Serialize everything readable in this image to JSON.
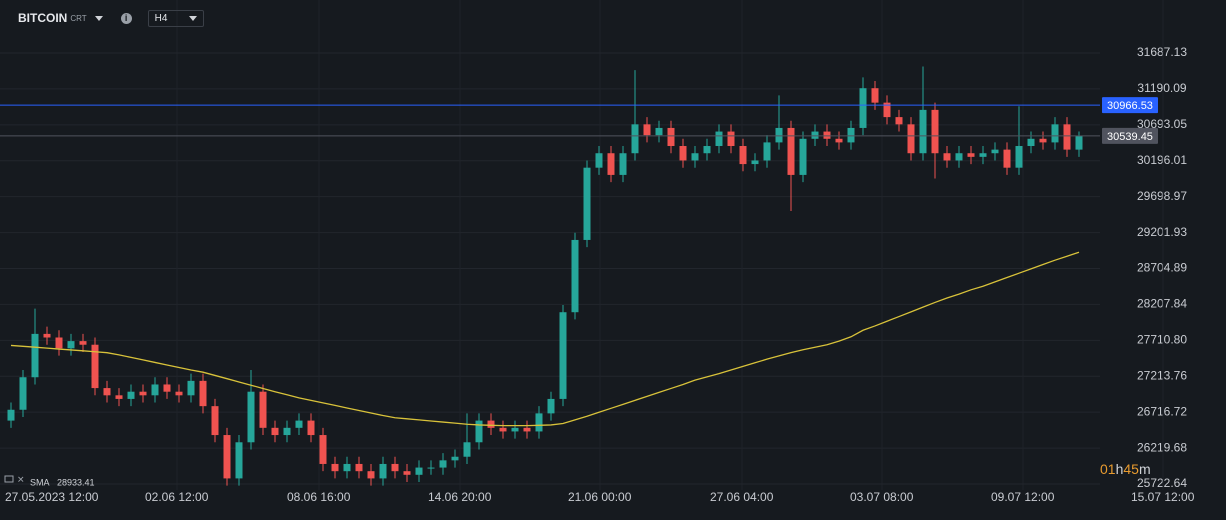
{
  "chart_data": {
    "type": "candlestick",
    "symbol": "BITCOIN",
    "symbol_suffix": "CRT",
    "timeframe": "H4",
    "up_color": "#26a69a",
    "down_color": "#ef5350",
    "grid": true,
    "ylim": [
      25639.61,
      32420.58
    ],
    "yticks": [
      31687.13,
      31190.09,
      30693.05,
      30196.01,
      29698.97,
      29201.93,
      28704.89,
      28207.84,
      {
        "value": 27710.8,
        "label": "27710.80"
      },
      27213.76,
      26716.72,
      26219.68,
      25722.64
    ],
    "x_labels": [
      "27.05.2023  12:00",
      "02.06  12:00",
      "08.06  16:00",
      "14.06  20:00",
      "21.06  00:00",
      "27.06  04:00",
      "03.07  08:00",
      "09.07  12:00",
      "15.07  12:00"
    ],
    "open": [
      26600,
      26750,
      27200,
      27800,
      27750,
      27600,
      27700,
      27650,
      27050,
      26950,
      26900,
      27000,
      26950,
      27100,
      27000,
      26950,
      27150,
      26800,
      26400,
      25800,
      26300,
      27000,
      26500,
      26400,
      26500,
      26600,
      26400,
      26000,
      25900,
      26000,
      25900,
      25800,
      26000,
      25900,
      25850,
      25950,
      25950,
      26050,
      26100,
      26300,
      26600,
      26500,
      26450,
      26500,
      26450,
      26700,
      26900,
      28100,
      29100,
      30100,
      30300,
      30000,
      30300,
      30700,
      30550,
      30650,
      30400,
      30200,
      30300,
      30400,
      30600,
      30400,
      30150,
      30200,
      30450,
      30650,
      30000,
      30500,
      30600,
      30500,
      30450,
      30650,
      31200,
      31000,
      30800,
      30700,
      30300,
      30900,
      30300,
      30200,
      30300,
      30250,
      30300,
      30350,
      30100,
      30400,
      30500,
      30450,
      30700,
      30350
    ],
    "high": [
      26850,
      27300,
      28150,
      27900,
      27850,
      27800,
      27800,
      27750,
      27150,
      27050,
      27100,
      27100,
      27200,
      27200,
      27100,
      27250,
      27250,
      26900,
      26500,
      26400,
      27300,
      27100,
      26600,
      26600,
      26700,
      26700,
      26500,
      26100,
      26100,
      26100,
      26000,
      26100,
      26100,
      26000,
      26050,
      26050,
      26150,
      26200,
      26700,
      26700,
      26700,
      26600,
      26600,
      26600,
      26800,
      27000,
      28200,
      29200,
      30200,
      30400,
      30400,
      30400,
      31450,
      30800,
      30750,
      30750,
      30500,
      30400,
      30500,
      30700,
      30700,
      30500,
      30300,
      30550,
      31100,
      30750,
      30600,
      30700,
      30700,
      30600,
      30750,
      31350,
      31300,
      31100,
      30900,
      30800,
      31500,
      31000,
      30400,
      30400,
      30400,
      30400,
      30450,
      30450,
      30950,
      30600,
      30600,
      30800,
      30800,
      30600
    ],
    "low": [
      26500,
      26650,
      27100,
      27650,
      27500,
      27500,
      27550,
      26950,
      26850,
      26800,
      26800,
      26850,
      26850,
      26900,
      26850,
      26850,
      26700,
      26300,
      25700,
      25700,
      26200,
      26400,
      26300,
      26300,
      26400,
      26300,
      25900,
      25800,
      25800,
      25800,
      25700,
      25700,
      25800,
      25750,
      25750,
      25850,
      25850,
      25950,
      26000,
      26200,
      26400,
      26350,
      26350,
      26350,
      26350,
      26600,
      26800,
      28000,
      29000,
      30000,
      29900,
      29900,
      30200,
      30450,
      30450,
      30300,
      30100,
      30100,
      30200,
      30300,
      30300,
      30050,
      30050,
      30100,
      30350,
      29500,
      29900,
      30400,
      30400,
      30350,
      30350,
      30550,
      30900,
      30700,
      30600,
      30200,
      30200,
      29950,
      30100,
      30100,
      30150,
      30150,
      30200,
      30000,
      30000,
      30300,
      30350,
      30350,
      30250,
      30250
    ],
    "close": [
      26750,
      27200,
      27800,
      27750,
      27600,
      27700,
      27650,
      27050,
      26950,
      26900,
      27000,
      26950,
      27100,
      27000,
      26950,
      27150,
      26800,
      26400,
      25800,
      26300,
      27000,
      26500,
      26400,
      26500,
      26600,
      26400,
      26000,
      25900,
      26000,
      25900,
      25800,
      26000,
      25900,
      25850,
      25950,
      25950,
      26050,
      26100,
      26300,
      26600,
      26500,
      26450,
      26500,
      26450,
      26700,
      26900,
      28100,
      29100,
      30100,
      30300,
      30000,
      30300,
      30700,
      30550,
      30650,
      30400,
      30200,
      30300,
      30400,
      30600,
      30400,
      30150,
      30200,
      30450,
      30650,
      30000,
      30500,
      30600,
      30500,
      30450,
      30650,
      31200,
      31000,
      30800,
      30700,
      30300,
      30900,
      30300,
      30200,
      30300,
      30250,
      30300,
      30350,
      30100,
      30400,
      30500,
      30450,
      30700,
      30350,
      30540
    ],
    "sma": {
      "name": "SMA",
      "value": 28933.41,
      "color": "#d8c23a",
      "values": [
        27640,
        27628,
        27616,
        27603,
        27590,
        27578,
        27566,
        27553,
        27540,
        27510,
        27475,
        27440,
        27405,
        27370,
        27335,
        27300,
        27270,
        27225,
        27180,
        27135,
        27090,
        27045,
        27000,
        26958,
        26915,
        26880,
        26845,
        26810,
        26775,
        26740,
        26705,
        26670,
        26640,
        26625,
        26610,
        26595,
        26580,
        26565,
        26550,
        26540,
        26535,
        26530,
        26530,
        26530,
        26535,
        26540,
        26560,
        26610,
        26660,
        26715,
        26770,
        26825,
        26880,
        26935,
        26990,
        27045,
        27100,
        27160,
        27205,
        27250,
        27300,
        27350,
        27400,
        27450,
        27495,
        27540,
        27580,
        27615,
        27650,
        27700,
        27760,
        27850,
        27910,
        27975,
        28040,
        28105,
        28170,
        28235,
        28297,
        28350,
        28410,
        28460,
        28520,
        28580,
        28640,
        28700,
        28760,
        28820,
        28875,
        28930
      ]
    },
    "price_lines": [
      {
        "value": 30966.53,
        "color": "#2962ff"
      },
      {
        "value": 30539.45,
        "color": "#50535e"
      }
    ],
    "timer": {
      "hours": "01",
      "hours_unit": "h",
      "minutes": "45",
      "minutes_unit": "m"
    }
  }
}
